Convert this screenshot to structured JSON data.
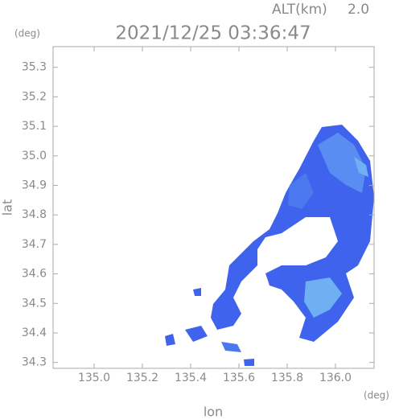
{
  "chart_data": {
    "type": "radar-map",
    "title": "2021/12/25 03:36:47",
    "altitude_label": "ALT(km)",
    "altitude": "2.0",
    "x_unit": "(deg)",
    "y_unit": "(deg)",
    "x_label": "lon",
    "y_label": "lat",
    "xlim": [
      134.83,
      136.16
    ],
    "ylim": [
      34.28,
      35.37
    ],
    "xticks": [
      {
        "value": 135,
        "label": "135.0"
      },
      135.2,
      135.4,
      135.6,
      135.8,
      {
        "value": 136,
        "label": "136.0"
      }
    ],
    "yticks": [
      34.3,
      34.4,
      34.5,
      34.6,
      34.7,
      34.8,
      34.9,
      {
        "value": 35,
        "label": "35.0"
      },
      35.1,
      35.2,
      35.3
    ]
  }
}
